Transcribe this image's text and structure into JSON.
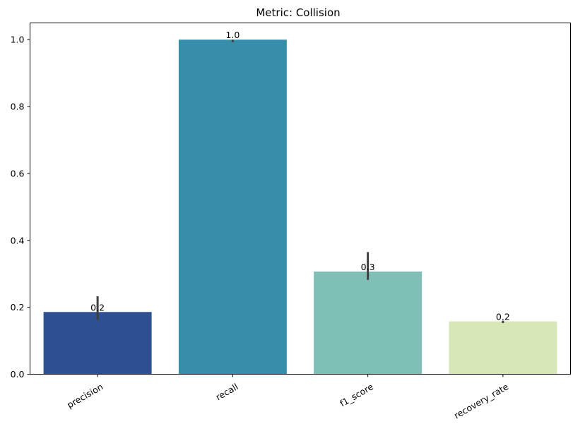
{
  "chart_data": {
    "type": "bar",
    "title": "Metric: Collision",
    "xlabel": "",
    "ylabel": "",
    "categories": [
      "precision",
      "recall",
      "f1_score",
      "recovery_rate"
    ],
    "values": [
      0.186,
      1.0,
      0.307,
      0.158
    ],
    "error_low": [
      0.162,
      0.993,
      0.282,
      0.153
    ],
    "error_high": [
      0.233,
      1.0,
      0.365,
      0.16
    ],
    "bar_labels": [
      "0.2",
      "1.0",
      "0.3",
      "0.2"
    ],
    "colors": [
      "#2f5090",
      "#378eab",
      "#7fbfb5",
      "#d7e7b8"
    ],
    "ylim": [
      0,
      1.05
    ],
    "yticks": [
      0.0,
      0.2,
      0.4,
      0.6,
      0.8,
      1.0
    ],
    "ytick_labels": [
      "0.0",
      "0.2",
      "0.4",
      "0.6",
      "0.8",
      "1.0"
    ],
    "grid": false,
    "legend": "none"
  }
}
